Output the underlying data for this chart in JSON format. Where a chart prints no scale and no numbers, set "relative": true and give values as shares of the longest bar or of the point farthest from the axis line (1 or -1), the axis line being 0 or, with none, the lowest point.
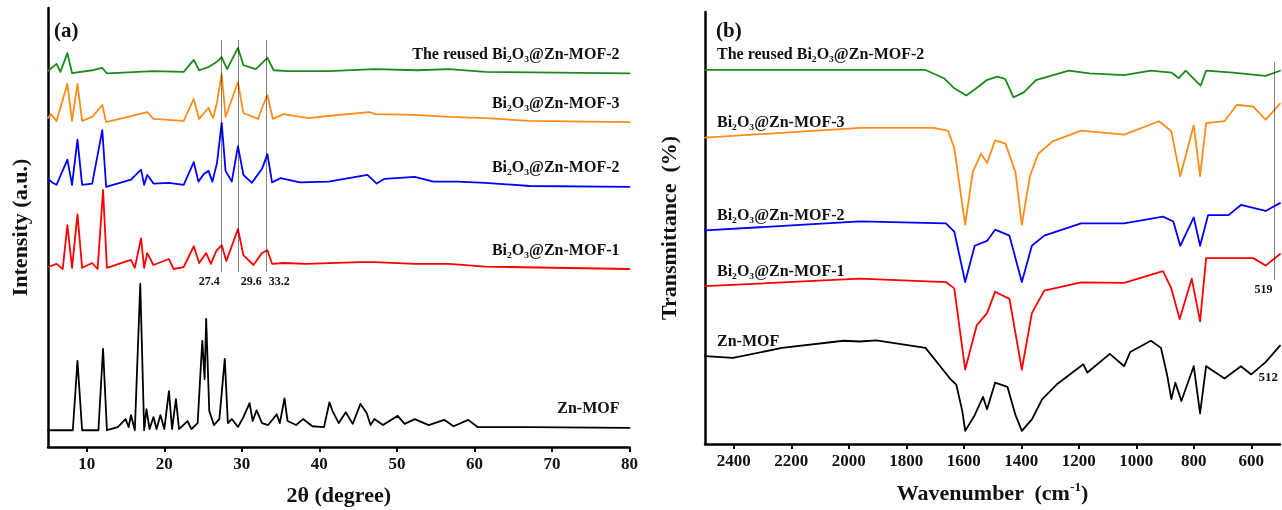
{
  "chart_data": [
    {
      "type": "line",
      "title": "(a)",
      "xlabel": "2θ (degree)",
      "ylabel": "Intensity (a.u.)",
      "relative": true,
      "marker": "none",
      "xlim": [
        5,
        80
      ],
      "xticks": [
        10,
        20,
        30,
        40,
        50,
        60,
        70,
        80
      ],
      "ref_lines": [
        {
          "axis": "x",
          "value": 27.4,
          "label": "27.4",
          "line_style": "dotted",
          "color": "#000000"
        },
        {
          "axis": "x",
          "value": 29.6,
          "label": "29.6",
          "line_style": "dotted",
          "color": "#000000"
        },
        {
          "axis": "x",
          "value": 33.2,
          "label": "33.2",
          "line_style": "dotted",
          "color": "#000000"
        }
      ],
      "series": [
        {
          "name": "The reused Bi₂O₃@Zn-MOF-2",
          "color": "#1a8a1a",
          "x": [
            5.0,
            6.1,
            6.6,
            7.5,
            8.1,
            10.7,
            12.0,
            12.6,
            18.6,
            22.5,
            23.8,
            24.5,
            25.7,
            26.7,
            27.4,
            28.1,
            29.5,
            30.2,
            31.8,
            32.7,
            33.3,
            34.1,
            36.0,
            41.2,
            47.1,
            52.6,
            56.7,
            61.4,
            80.0
          ],
          "values": [
            0.942,
            0.96,
            0.94,
            0.987,
            0.937,
            0.944,
            0.95,
            0.936,
            0.942,
            0.94,
            0.97,
            0.944,
            0.952,
            0.964,
            0.977,
            0.947,
            1.0,
            0.957,
            0.947,
            0.964,
            0.975,
            0.944,
            0.942,
            0.942,
            0.947,
            0.944,
            0.947,
            0.94,
            0.936
          ]
        },
        {
          "name": "Bi₂O₃@Zn-MOF-3",
          "color": "#ff8c1a",
          "x": [
            5.0,
            5.4,
            6.1,
            7.5,
            8.1,
            8.8,
            9.4,
            10.7,
            12.0,
            12.5,
            15.7,
            17.8,
            18.6,
            22.5,
            23.8,
            24.5,
            25.7,
            26.3,
            26.8,
            27.4,
            27.9,
            29.5,
            30.2,
            32.1,
            32.7,
            33.3,
            34.0,
            35.4,
            38.6,
            41.4,
            46.4,
            47.3,
            52.3,
            56.7,
            61.4,
            67.1,
            80.0
          ],
          "values": [
            0.824,
            0.834,
            0.817,
            0.91,
            0.817,
            0.91,
            0.817,
            0.827,
            0.857,
            0.814,
            0.829,
            0.839,
            0.822,
            0.817,
            0.872,
            0.822,
            0.85,
            0.824,
            0.864,
            0.934,
            0.827,
            0.914,
            0.837,
            0.822,
            0.854,
            0.882,
            0.822,
            0.834,
            0.824,
            0.83,
            0.839,
            0.834,
            0.832,
            0.827,
            0.824,
            0.817,
            0.814
          ]
        },
        {
          "name": "Bi₂O₃@Zn-MOF-2",
          "color": "#0000ff",
          "x": [
            5.0,
            5.6,
            6.1,
            7.5,
            8.1,
            8.8,
            9.4,
            10.7,
            12.0,
            12.5,
            15.7,
            17.0,
            17.4,
            17.8,
            18.6,
            20.6,
            22.5,
            23.8,
            24.4,
            25.1,
            25.7,
            26.2,
            26.8,
            27.4,
            27.9,
            28.7,
            29.5,
            30.2,
            31.3,
            32.6,
            33.3,
            33.9,
            35.0,
            37.5,
            41.2,
            46.2,
            47.4,
            48.4,
            52.3,
            54.7,
            57.8,
            61.4,
            67.1,
            80.0
          ],
          "values": [
            0.672,
            0.662,
            0.657,
            0.72,
            0.657,
            0.77,
            0.657,
            0.66,
            0.794,
            0.652,
            0.67,
            0.695,
            0.657,
            0.682,
            0.66,
            0.662,
            0.657,
            0.714,
            0.665,
            0.684,
            0.692,
            0.665,
            0.712,
            0.812,
            0.692,
            0.665,
            0.754,
            0.682,
            0.662,
            0.697,
            0.734,
            0.663,
            0.674,
            0.663,
            0.665,
            0.682,
            0.66,
            0.672,
            0.677,
            0.665,
            0.665,
            0.662,
            0.654,
            0.652
          ]
        },
        {
          "name": "Bi₂O₃@Zn-MOF-1",
          "color": "#ff0000",
          "x": [
            5.0,
            6.1,
            6.9,
            7.5,
            8.1,
            8.8,
            9.4,
            10.7,
            11.4,
            12.1,
            12.6,
            15.7,
            16.2,
            17.0,
            17.4,
            17.8,
            18.6,
            20.6,
            21.2,
            22.5,
            23.8,
            24.5,
            25.4,
            26.0,
            26.7,
            27.4,
            28.0,
            29.5,
            30.2,
            31.5,
            32.6,
            33.3,
            33.9,
            35.4,
            38.3,
            45.3,
            47.1,
            52.3,
            56.7,
            61.4,
            80.0
          ],
          "values": [
            0.451,
            0.459,
            0.446,
            0.556,
            0.449,
            0.583,
            0.449,
            0.461,
            0.446,
            0.644,
            0.449,
            0.469,
            0.449,
            0.523,
            0.449,
            0.486,
            0.456,
            0.471,
            0.446,
            0.451,
            0.503,
            0.461,
            0.486,
            0.459,
            0.491,
            0.506,
            0.466,
            0.546,
            0.481,
            0.456,
            0.486,
            0.493,
            0.459,
            0.461,
            0.459,
            0.463,
            0.463,
            0.459,
            0.459,
            0.452,
            0.446
          ]
        },
        {
          "name": "Zn-MOF",
          "color": "#000000",
          "x": [
            5.0,
            8.2,
            8.8,
            9.4,
            11.5,
            12.1,
            12.6,
            14.0,
            15.0,
            15.4,
            15.7,
            16.2,
            16.9,
            17.4,
            17.7,
            18.1,
            18.6,
            19.0,
            19.5,
            20.0,
            20.6,
            21.0,
            21.5,
            21.9,
            23.0,
            23.5,
            24.3,
            24.9,
            25.2,
            25.4,
            25.8,
            26.4,
            27.1,
            27.8,
            28.2,
            28.7,
            29.5,
            30.2,
            31.0,
            31.4,
            31.9,
            32.6,
            33.4,
            34.5,
            34.9,
            35.5,
            35.9,
            37.0,
            37.9,
            39.1,
            40.6,
            41.3,
            41.7,
            42.5,
            43.4,
            44.3,
            45.3,
            46.1,
            46.6,
            47.1,
            48.2,
            50.1,
            51.0,
            52.3,
            54.1,
            56.1,
            57.3,
            59.2,
            60.4,
            67.1,
            80.0
          ],
          "values": [
            0.042,
            0.042,
            0.216,
            0.042,
            0.042,
            0.246,
            0.042,
            0.05,
            0.07,
            0.05,
            0.08,
            0.042,
            0.409,
            0.042,
            0.095,
            0.045,
            0.075,
            0.045,
            0.08,
            0.045,
            0.14,
            0.045,
            0.12,
            0.045,
            0.065,
            0.045,
            0.06,
            0.266,
            0.17,
            0.321,
            0.09,
            0.055,
            0.07,
            0.221,
            0.06,
            0.07,
            0.05,
            0.075,
            0.11,
            0.065,
            0.092,
            0.06,
            0.055,
            0.082,
            0.06,
            0.122,
            0.065,
            0.055,
            0.07,
            0.052,
            0.05,
            0.112,
            0.09,
            0.06,
            0.087,
            0.058,
            0.108,
            0.085,
            0.055,
            0.07,
            0.055,
            0.078,
            0.058,
            0.07,
            0.055,
            0.068,
            0.052,
            0.068,
            0.05,
            0.05,
            0.048
          ]
        }
      ]
    },
    {
      "type": "line",
      "title": "(b)",
      "xlabel": "Wavenumber  (cm$^{-1}$)",
      "ylabel": "Transmittance  (%)",
      "relative": true,
      "marker": "none",
      "xlim": [
        2500,
        500
      ],
      "xticks": [
        2400,
        2200,
        2000,
        1800,
        1600,
        1400,
        1200,
        1000,
        800,
        600
      ],
      "ref_lines": [
        {
          "axis": "x",
          "value": 519,
          "label": "519",
          "line_style": "dotted",
          "color": "#000000"
        }
      ],
      "annotations": [
        "512"
      ],
      "series": [
        {
          "name": "The reused Bi₂O₃@Zn-MOF-2",
          "color": "#1a8a1a",
          "x": [
            2500,
            1733,
            1669,
            1633,
            1591,
            1548,
            1520,
            1484,
            1456,
            1427,
            1391,
            1349,
            1235,
            1163,
            1042,
            949,
            878,
            852,
            828,
            776,
            757,
            664,
            550,
            500
          ],
          "values": [
            1.0,
            1.0,
            0.978,
            0.951,
            0.932,
            0.956,
            0.973,
            0.982,
            0.976,
            0.927,
            0.94,
            0.973,
            0.998,
            0.991,
            0.986,
            0.998,
            0.993,
            0.978,
            0.998,
            0.958,
            0.998,
            0.993,
            0.984,
            0.998
          ]
        },
        {
          "name": "Bi₂O₃@Zn-MOF-3",
          "color": "#ff8c1a",
          "x": [
            2500,
            1961,
            1705,
            1655,
            1633,
            1595,
            1569,
            1540,
            1519,
            1491,
            1455,
            1420,
            1398,
            1370,
            1341,
            1291,
            1192,
            1042,
            921,
            878,
            847,
            800,
            778,
            757,
            693,
            650,
            593,
            550,
            500
          ],
          "values": [
            0.819,
            0.845,
            0.845,
            0.838,
            0.792,
            0.586,
            0.726,
            0.776,
            0.751,
            0.812,
            0.803,
            0.726,
            0.586,
            0.716,
            0.776,
            0.809,
            0.838,
            0.827,
            0.863,
            0.836,
            0.716,
            0.852,
            0.716,
            0.858,
            0.863,
            0.907,
            0.902,
            0.867,
            0.91
          ]
        },
        {
          "name": "Bi₂O₃@Zn-MOF-2",
          "color": "#0000ff",
          "x": [
            2500,
            1961,
            1662,
            1633,
            1595,
            1562,
            1519,
            1491,
            1441,
            1398,
            1363,
            1320,
            1192,
            1042,
            907,
            871,
            847,
            800,
            778,
            750,
            679,
            636,
            550,
            500
          ],
          "values": [
            0.571,
            0.595,
            0.59,
            0.568,
            0.433,
            0.53,
            0.543,
            0.573,
            0.557,
            0.433,
            0.53,
            0.557,
            0.59,
            0.59,
            0.608,
            0.595,
            0.53,
            0.606,
            0.53,
            0.612,
            0.612,
            0.639,
            0.623,
            0.644
          ]
        },
        {
          "name": "Bi₂O₃@Zn-MOF-1",
          "color": "#ff0000",
          "x": [
            2500,
            1961,
            1662,
            1633,
            1595,
            1555,
            1519,
            1491,
            1441,
            1398,
            1363,
            1320,
            1192,
            1042,
            907,
            878,
            849,
            807,
            778,
            757,
            679,
            593,
            550,
            500
          ],
          "values": [
            0.422,
            0.442,
            0.433,
            0.416,
            0.199,
            0.317,
            0.35,
            0.407,
            0.388,
            0.199,
            0.35,
            0.41,
            0.432,
            0.431,
            0.462,
            0.416,
            0.334,
            0.442,
            0.328,
            0.497,
            0.497,
            0.497,
            0.477,
            0.508
          ]
        },
        {
          "name": "Zn-MOF",
          "color": "#000000",
          "x": [
            2500,
            2403,
            2232,
            2018,
            1961,
            1904,
            1733,
            1648,
            1626,
            1605,
            1595,
            1562,
            1533,
            1519,
            1491,
            1448,
            1420,
            1398,
            1363,
            1327,
            1277,
            1184,
            1170,
            1092,
            1042,
            1021,
            949,
            914,
            893,
            878,
            864,
            843,
            800,
            778,
            757,
            693,
            636,
            600,
            550,
            500
          ],
          "values": [
            0.235,
            0.23,
            0.257,
            0.276,
            0.274,
            0.277,
            0.257,
            0.175,
            0.159,
            0.088,
            0.035,
            0.077,
            0.126,
            0.093,
            0.164,
            0.153,
            0.077,
            0.035,
            0.066,
            0.12,
            0.159,
            0.213,
            0.191,
            0.241,
            0.208,
            0.246,
            0.276,
            0.257,
            0.186,
            0.12,
            0.164,
            0.115,
            0.208,
            0.082,
            0.208,
            0.175,
            0.208,
            0.186,
            0.219,
            0.263
          ]
        }
      ]
    }
  ]
}
